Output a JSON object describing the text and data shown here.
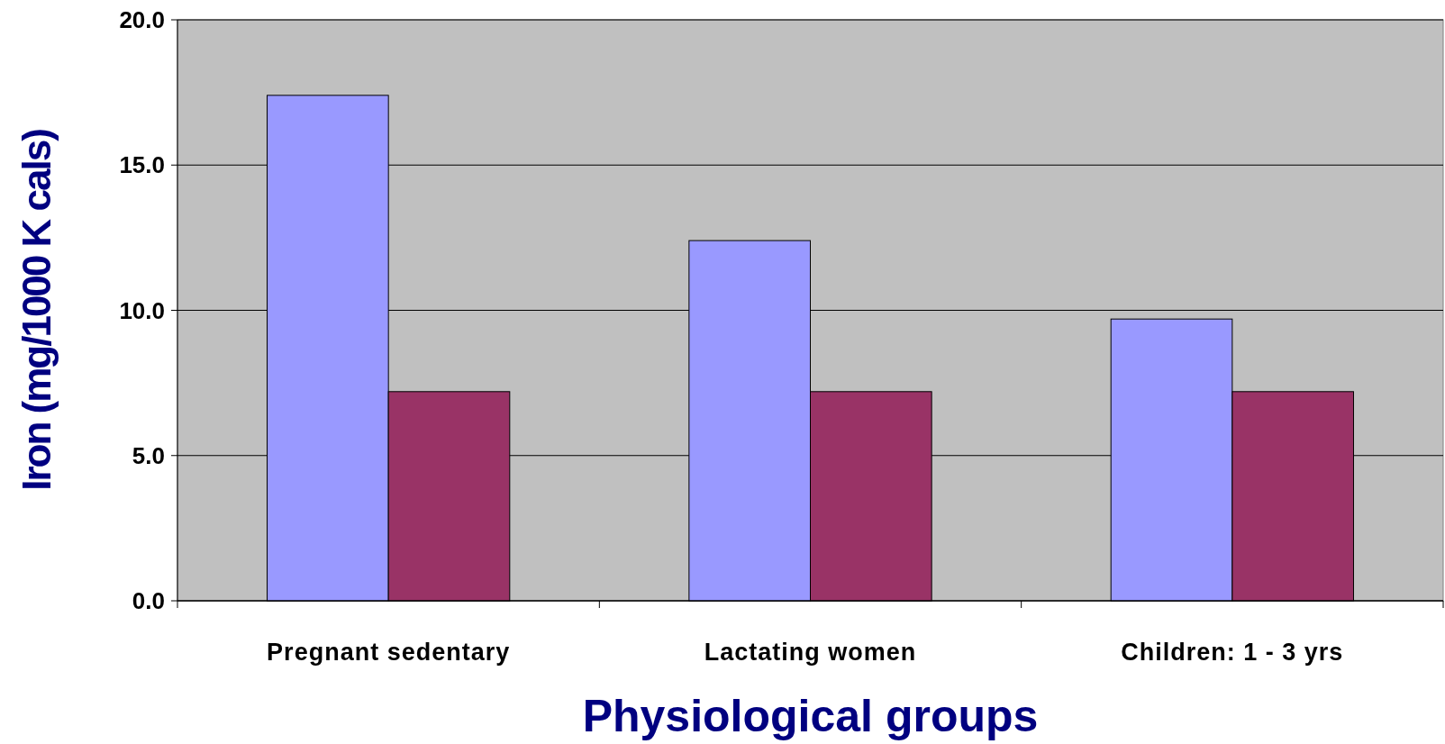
{
  "chart_data": {
    "type": "bar",
    "xlabel": "Physiological groups",
    "ylabel": "Iron (mg/1000 K cals)",
    "categories": [
      "Pregnant sedentary",
      "Lactating women",
      "Children: 1 - 3 yrs"
    ],
    "series": [
      {
        "color": "#9999ff",
        "values": [
          17.4,
          12.4,
          9.7
        ]
      },
      {
        "color": "#993366",
        "values": [
          7.2,
          7.2,
          7.2
        ]
      }
    ],
    "ylim": [
      0,
      20
    ],
    "yticks": [
      {
        "value": 0,
        "label": "0.0"
      },
      {
        "value": 5,
        "label": "5.0"
      },
      {
        "value": 10,
        "label": "10.0"
      },
      {
        "value": 15,
        "label": "15.0"
      },
      {
        "value": 20,
        "label": "20.0"
      }
    ],
    "grid": "y"
  }
}
